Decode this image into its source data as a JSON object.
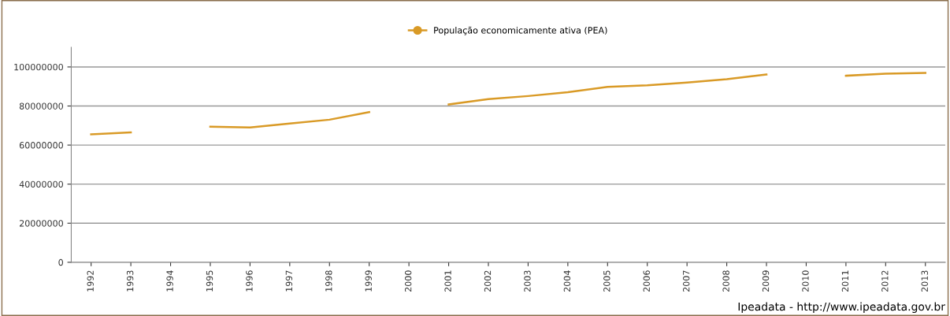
{
  "chart_data": {
    "type": "line",
    "categories": [
      "1992",
      "1993",
      "1994",
      "1995",
      "1996",
      "1997",
      "1998",
      "1999",
      "2000",
      "2001",
      "2002",
      "2003",
      "2004",
      "2005",
      "2006",
      "2007",
      "2008",
      "2009",
      "2010",
      "2011",
      "2012",
      "2013"
    ],
    "series": [
      {
        "name": "População economicamente ativa (PEA)",
        "color": "#d99a26",
        "values": [
          65500000,
          66500000,
          null,
          69400000,
          69000000,
          71000000,
          73000000,
          76900000,
          null,
          80800000,
          83500000,
          85100000,
          87100000,
          89800000,
          90600000,
          92000000,
          93700000,
          96100000,
          null,
          95500000,
          96500000,
          96900000
        ]
      }
    ],
    "ylim": [
      0,
      110000000
    ],
    "yticks": [
      0,
      20000000,
      40000000,
      60000000,
      80000000,
      100000000
    ],
    "grid": "y",
    "legend": "top",
    "marker": "none",
    "line_style": "solid",
    "annotations": [
      "Ipeadata - http://www.ipeadata.gov.br"
    ]
  }
}
